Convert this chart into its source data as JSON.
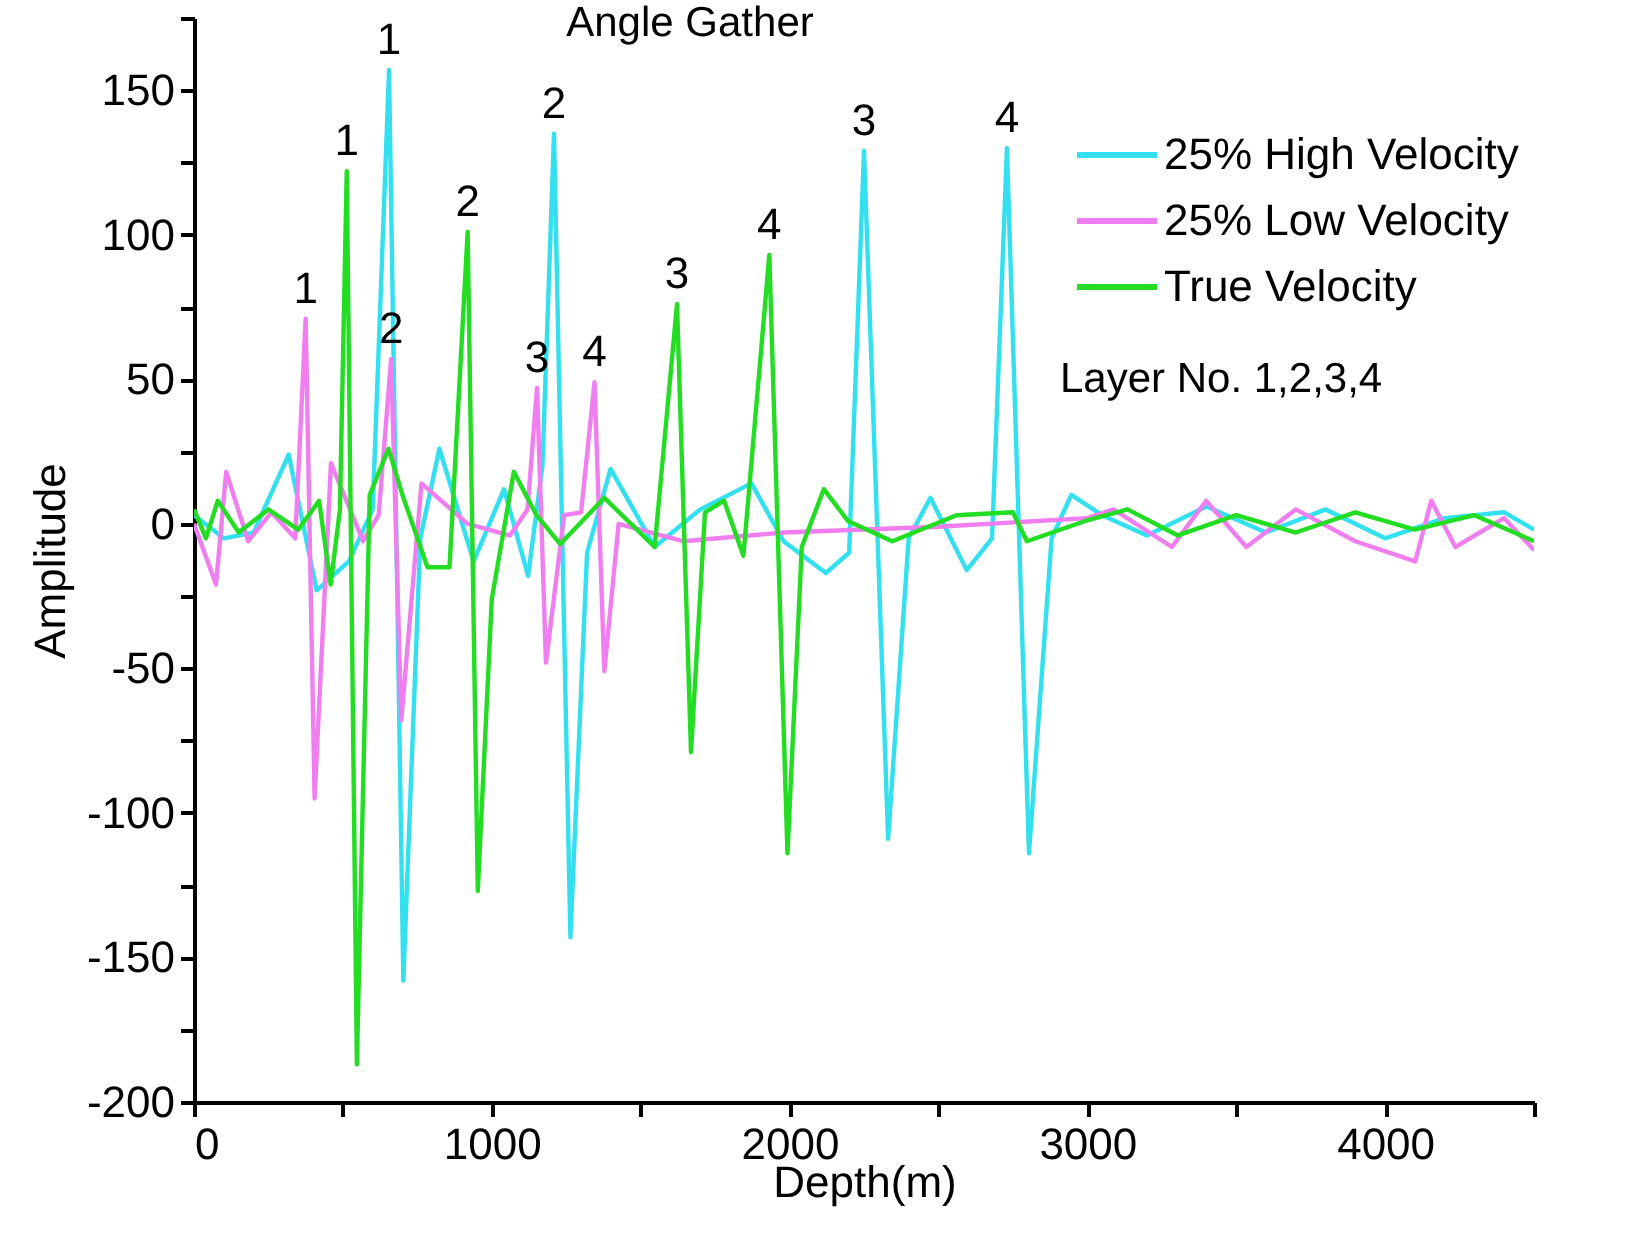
{
  "chart_data": {
    "type": "line",
    "title": "Angle Gather",
    "xlabel": "Depth(m)",
    "ylabel": "Amplitude",
    "xlim": [
      0,
      4500
    ],
    "ylim": [
      -200,
      175
    ],
    "xticks": [
      0,
      {
        "value": 500,
        "label": null
      },
      1000,
      {
        "value": 1500,
        "label": null
      },
      2000,
      {
        "value": 2500,
        "label": null
      },
      3000,
      {
        "value": 3500,
        "label": null
      },
      4000,
      {
        "value": 4500,
        "label": null
      }
    ],
    "yticks": [
      -200,
      {
        "value": -175,
        "label": null
      },
      -150,
      {
        "value": -125,
        "label": null
      },
      -100,
      {
        "value": -75,
        "label": null
      },
      -50,
      {
        "value": -25,
        "label": null
      },
      0,
      {
        "value": 25,
        "label": null
      },
      50,
      {
        "value": 75,
        "label": null
      },
      100,
      {
        "value": 125,
        "label": null
      },
      150,
      {
        "value": 175,
        "label": null
      }
    ],
    "grid": false,
    "legend": "top right",
    "marker": "none",
    "line_style": "solid",
    "series": [
      {
        "name": "25% High Velocity",
        "color": "#33e0f0",
        "x": [
          0,
          100,
          200,
          318,
          412,
          520,
          600,
          655,
          703,
          760,
          824,
          939,
          1041,
          1122,
          1170,
          1209,
          1264,
          1320,
          1399,
          1547,
          1700,
          1872,
          1980,
          2122,
          2200,
          2250,
          2331,
          2400,
          2473,
          2595,
          2680,
          2730,
          2804,
          2880,
          2946,
          3050,
          3200,
          3400,
          3600,
          3800,
          4000,
          4200,
          4400,
          4500
        ],
        "values": [
          3,
          -5,
          -3,
          24,
          -23,
          -13,
          5,
          157,
          -158,
          -5,
          26,
          -13,
          12,
          -18,
          20,
          135,
          -143,
          -10,
          19,
          -8,
          5,
          14,
          -6,
          -17,
          -10,
          129,
          -109,
          -5,
          9,
          -16,
          -5,
          130,
          -114,
          -5,
          10,
          3,
          -4,
          6,
          -3,
          5,
          -5,
          2,
          4,
          -2
        ]
      },
      {
        "name": "25% Low Velocity",
        "color": "#f07ef0",
        "x": [
          0,
          74,
          108,
          182,
          260,
          340,
          375,
          405,
          460,
          568,
          620,
          662,
          696,
          764,
          919,
          1061,
          1120,
          1152,
          1182,
          1243,
          1300,
          1345,
          1378,
          1426,
          1642,
          1980,
          2500,
          3000,
          3088,
          3284,
          3399,
          3534,
          3700,
          3900,
          4101,
          4155,
          4236,
          4399,
          4500
        ],
        "values": [
          0,
          -21,
          18,
          -6,
          4,
          -5,
          71,
          -95,
          21,
          -6,
          3,
          57,
          -68,
          14,
          0,
          -4,
          5,
          47,
          -48,
          3,
          4,
          49,
          -51,
          0,
          -6,
          -3,
          -1,
          2,
          5,
          -8,
          8,
          -8,
          5,
          -6,
          -13,
          8,
          -8,
          2,
          -9
        ]
      },
      {
        "name": "True Velocity",
        "color": "#22dd22",
        "x": [
          0,
          40,
          80,
          150,
          250,
          350,
          420,
          459,
          490,
          513,
          547,
          590,
          653,
          700,
          784,
          858,
          919,
          953,
          1000,
          1074,
          1150,
          1230,
          1378,
          1547,
          1622,
          1669,
          1716,
          1780,
          1845,
          1932,
          1993,
          2041,
          2115,
          2196,
          2345,
          2561,
          2750,
          2797,
          2993,
          3135,
          3304,
          3500,
          3700,
          3900,
          4100,
          4300,
          4500
        ],
        "values": [
          5,
          -5,
          8,
          -3,
          5,
          -2,
          8,
          -21,
          5,
          122,
          -187,
          10,
          26,
          10,
          -15,
          -15,
          101,
          -127,
          -26,
          18,
          3,
          -7,
          9,
          -8,
          76,
          -79,
          4,
          8,
          -11,
          93,
          -114,
          -8,
          12,
          1,
          -6,
          3,
          4,
          -6,
          1,
          5,
          -4,
          3,
          -3,
          4,
          -2,
          3,
          -6
        ]
      }
    ],
    "annotations": [
      {
        "text": "1",
        "x": 375,
        "y": 71
      },
      {
        "text": "1",
        "x": 513,
        "y": 122
      },
      {
        "text": "1",
        "x": 655,
        "y": 157
      },
      {
        "text": "2",
        "x": 662,
        "y": 57
      },
      {
        "text": "2",
        "x": 919,
        "y": 101
      },
      {
        "text": "2",
        "x": 1209,
        "y": 135
      },
      {
        "text": "3",
        "x": 1152,
        "y": 47
      },
      {
        "text": "4",
        "x": 1345,
        "y": 49
      },
      {
        "text": "3",
        "x": 1622,
        "y": 76
      },
      {
        "text": "4",
        "x": 1932,
        "y": 93
      },
      {
        "text": "3",
        "x": 2250,
        "y": 129
      },
      {
        "text": "4",
        "x": 2730,
        "y": 130
      },
      "Layer No. 1,2,3,4"
    ]
  }
}
